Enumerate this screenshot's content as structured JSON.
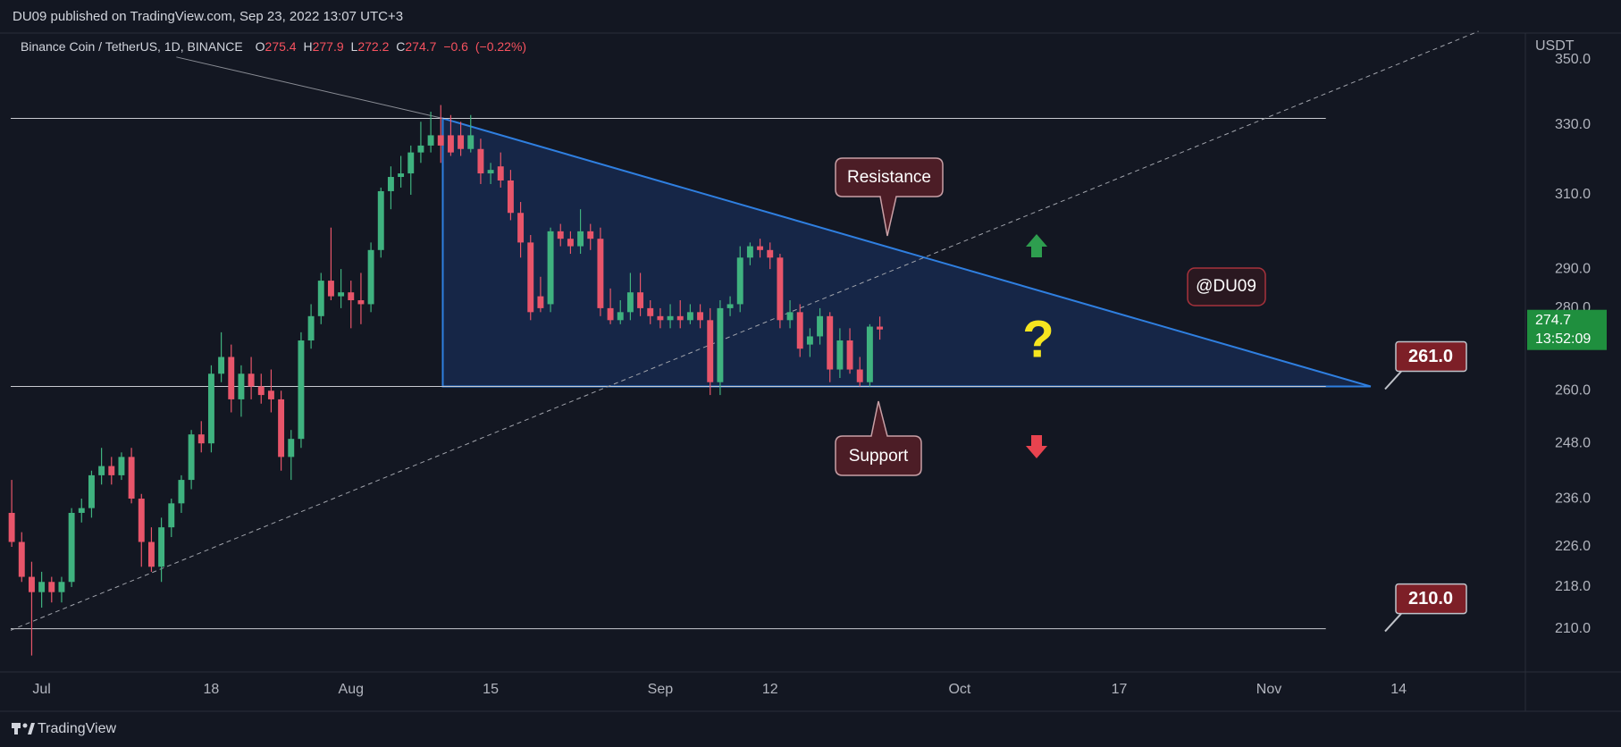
{
  "chart_data": {
    "type": "candlestick",
    "publisher": "DU09 published on TradingView.com, Sep 23, 2022 13:07 UTC+3",
    "symbol": "Binance Coin / TetherUS, 1D, BINANCE",
    "ohlc": [
      {
        "label": "O",
        "value": 275.4
      },
      {
        "label": "H",
        "value": 277.9
      },
      {
        "label": "L",
        "value": 272.2
      },
      {
        "label": "C",
        "value": 274.7
      }
    ],
    "change": {
      "value": -0.6,
      "label": "−0.6"
    },
    "change_pct": {
      "value": -0.22,
      "label": "(−0.22%)"
    },
    "currency": "USDT",
    "countdown": "13:52:09",
    "log": true,
    "up_color": "#3fb27f",
    "down_color": "#e8556a",
    "ylim": [
      202,
      359
    ],
    "yticks": [
      {
        "value": 350,
        "label": "350.0"
      },
      {
        "value": 330,
        "label": "330.0"
      },
      {
        "value": 310,
        "label": "310.0"
      },
      {
        "value": 290,
        "label": "290.0"
      },
      {
        "value": 280,
        "label": "280.0"
      },
      {
        "value": 260,
        "label": "260.0"
      },
      {
        "value": 248,
        "label": "248.0"
      },
      {
        "value": 236,
        "label": "236.0"
      },
      {
        "value": 226,
        "label": "226.0"
      },
      {
        "value": 218,
        "label": "218.0"
      },
      {
        "value": 210,
        "label": "210.0"
      }
    ],
    "xlim": [
      -3.1,
      148.7
    ],
    "xticks": [
      {
        "value": 0,
        "label": "Jul"
      },
      {
        "value": 17,
        "label": "18"
      },
      {
        "value": 31,
        "label": "Aug"
      },
      {
        "value": 45,
        "label": "15"
      },
      {
        "value": 62,
        "label": "Sep"
      },
      {
        "value": 73,
        "label": "12"
      },
      {
        "value": 92,
        "label": "Oct"
      },
      {
        "value": 108,
        "label": "17"
      },
      {
        "value": 123,
        "label": "Nov"
      },
      {
        "value": 136,
        "label": "14"
      }
    ],
    "candles": {
      "x": [
        -3,
        -2,
        -1,
        0,
        1,
        2,
        3,
        4,
        5,
        6,
        7,
        8,
        9,
        10,
        11,
        12,
        13,
        14,
        15,
        16,
        17,
        18,
        19,
        20,
        21,
        22,
        23,
        24,
        25,
        26,
        27,
        28,
        29,
        30,
        31,
        32,
        33,
        34,
        35,
        36,
        37,
        38,
        39,
        40,
        41,
        42,
        43,
        44,
        45,
        46,
        47,
        48,
        49,
        50,
        51,
        52,
        53,
        54,
        55,
        56,
        57,
        58,
        59,
        60,
        61,
        62,
        63,
        64,
        65,
        66,
        67,
        68,
        69,
        70,
        71,
        72,
        73,
        74,
        75,
        76,
        77,
        78,
        79,
        80,
        81,
        82,
        83,
        84
      ],
      "open": [
        233,
        227,
        220,
        217,
        219,
        217,
        219,
        233,
        234,
        241,
        243,
        241,
        245,
        236,
        227,
        222,
        230,
        235,
        240,
        250,
        248,
        264,
        268,
        258,
        264,
        261,
        260,
        258,
        245,
        249,
        272,
        278,
        287,
        283,
        284,
        282,
        281,
        295,
        311,
        315,
        316,
        322,
        324,
        327,
        327,
        327,
        323,
        323,
        316,
        318,
        314,
        305,
        297,
        283,
        281,
        300,
        298,
        296,
        300,
        298,
        280,
        277,
        279,
        284,
        280,
        278,
        277,
        278,
        277,
        279,
        277,
        262,
        280,
        281,
        293,
        296,
        295,
        293,
        277,
        279,
        271,
        273,
        278,
        265,
        272,
        265,
        262,
        275.4
      ],
      "high": [
        240,
        229,
        223,
        221,
        220,
        220,
        234,
        236,
        242,
        247,
        245,
        246,
        247,
        237,
        230,
        232,
        236,
        241,
        251,
        253,
        266,
        274,
        271,
        266,
        268,
        264,
        265,
        260,
        251,
        274,
        281,
        289,
        301,
        290,
        287,
        289,
        297,
        312,
        318,
        321,
        324,
        331,
        334,
        336,
        333,
        331,
        333,
        326,
        319,
        322,
        317,
        308,
        299,
        288,
        301,
        302,
        300,
        306,
        302,
        301,
        285,
        282,
        289,
        289,
        282,
        280,
        281,
        282,
        281,
        281,
        280,
        282,
        283,
        296,
        297,
        298,
        297,
        294,
        282,
        281,
        275,
        280,
        279,
        275,
        275,
        268,
        276,
        277.9
      ],
      "low": [
        226,
        219,
        205,
        214,
        215,
        215,
        218,
        231,
        232,
        239,
        239,
        240,
        235,
        222,
        221,
        219,
        228,
        233,
        238,
        246,
        246,
        262,
        255,
        254,
        258,
        257,
        255,
        242,
        240,
        247,
        270,
        276,
        282,
        280,
        275,
        276,
        279,
        293,
        306,
        312,
        310,
        319,
        322,
        319,
        321,
        321,
        322,
        313,
        313,
        312,
        303,
        293,
        277,
        279,
        279,
        296,
        294,
        294,
        295,
        278,
        276,
        276,
        277,
        278,
        276,
        275,
        275,
        275,
        276,
        275,
        259,
        259,
        278,
        279,
        291,
        293,
        290,
        275,
        275,
        268,
        268,
        271,
        262,
        263,
        264,
        261,
        261,
        272.2
      ],
      "close": [
        227,
        220,
        217,
        219,
        217,
        219,
        233,
        234,
        241,
        243,
        241,
        245,
        236,
        227,
        222,
        230,
        235,
        240,
        250,
        248,
        264,
        268,
        258,
        264,
        261,
        259,
        258,
        245,
        249,
        272,
        278,
        287,
        283,
        284,
        282,
        281,
        295,
        311,
        315,
        316,
        322,
        324,
        327,
        324,
        322,
        323,
        327,
        316,
        317,
        314,
        305,
        297,
        279,
        280,
        300,
        298,
        296,
        300,
        298,
        280,
        277,
        279,
        284,
        280,
        278,
        277,
        278,
        277,
        279,
        277,
        262,
        280,
        281,
        293,
        296,
        295,
        293,
        277,
        279,
        270,
        273,
        278,
        265,
        272,
        265,
        262,
        275.4,
        274.7
      ]
    },
    "horizontal_lines": [
      332,
      {
        "value": 261,
        "label": "261.0"
      },
      {
        "value": 210,
        "label": "210.0"
      }
    ],
    "hline_x": [
      -3.1,
      128.7
    ],
    "triangle": {
      "x": [
        40.2,
        40.2,
        133.2
      ],
      "y": [
        332,
        261,
        261
      ]
    },
    "trendline": {
      "x": [
        -3.1,
        144
      ],
      "y": [
        209.7,
        359
      ]
    },
    "gray_line": {
      "x": [
        13.5,
        40.2
      ],
      "y": [
        350.8,
        332
      ]
    },
    "resistance": "Resistance",
    "support": "Support",
    "watermark": "@DU09",
    "question": "?",
    "brand": "TradingView"
  }
}
